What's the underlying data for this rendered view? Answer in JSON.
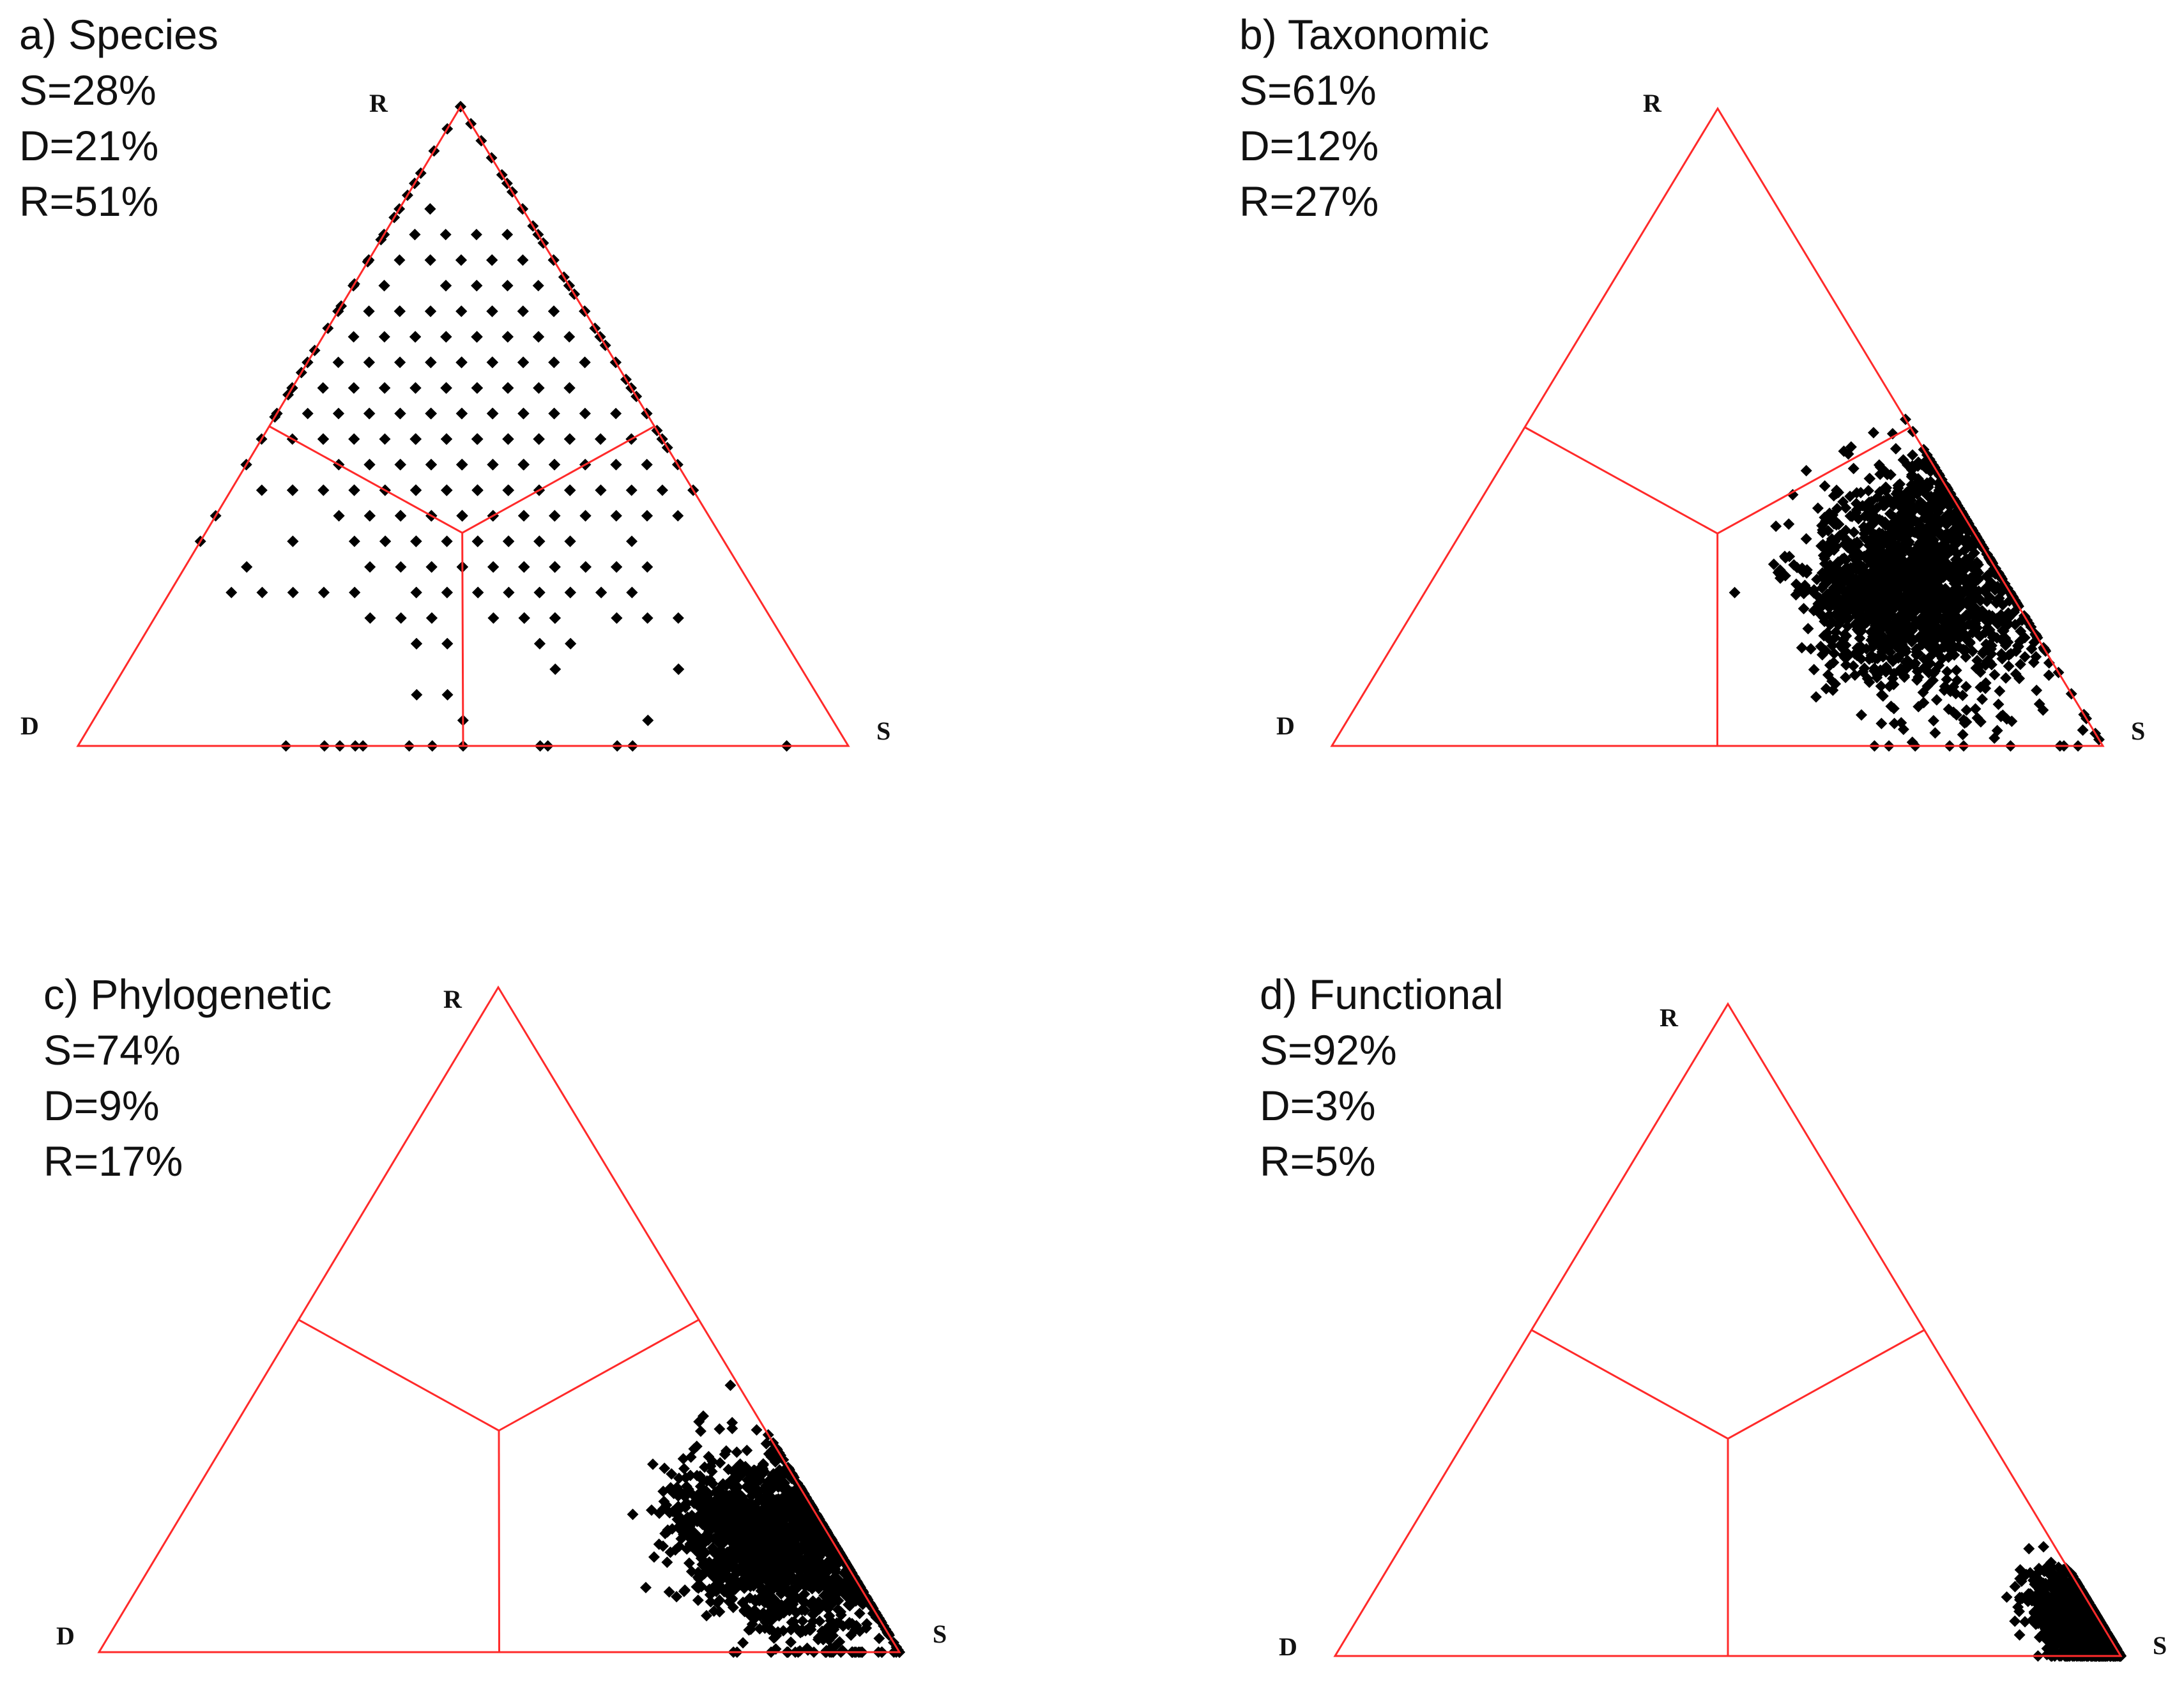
{
  "chart_data": [
    {
      "type": "scatter",
      "subtype": "ternary",
      "title": "a) Species",
      "stats": [
        {
          "label": "S",
          "value": 28,
          "text": "S=28%"
        },
        {
          "label": "D",
          "value": 21,
          "text": "D=21%"
        },
        {
          "label": "R",
          "value": 51,
          "text": "R=51%"
        }
      ],
      "vertices": {
        "top": "R",
        "left": "D",
        "right": "S"
      },
      "region_dividers": true,
      "point_color": "#000000",
      "line_color": "#ff2a2a",
      "clusters": [
        {
          "center": {
            "S": 0.31,
            "D": 0.27,
            "R": 0.42
          },
          "spread": 0.16,
          "count": 650,
          "snap": 0.04
        },
        {
          "center": {
            "S": 0.22,
            "D": 0.18,
            "R": 0.6
          },
          "spread": 0.12,
          "count": 180,
          "snap": 0.04
        },
        {
          "edge": "S-R",
          "from": {
            "S": 0.0,
            "D": 0.0,
            "R": 1.0
          },
          "to": {
            "S": 0.56,
            "D": 0.0,
            "R": 0.44
          },
          "count": 22
        },
        {
          "edge": "D-R",
          "from": {
            "S": 0.0,
            "D": 0.0,
            "R": 1.0
          },
          "to": {
            "S": 0.0,
            "D": 0.52,
            "R": 0.48
          },
          "count": 16
        },
        {
          "points": [
            {
              "S": 0.27,
              "D": 0.73,
              "R": 0.0
            },
            {
              "S": 0.32,
              "D": 0.68,
              "R": 0.0
            },
            {
              "S": 0.34,
              "D": 0.66,
              "R": 0.0
            },
            {
              "S": 0.37,
              "D": 0.63,
              "R": 0.0
            },
            {
              "S": 0.43,
              "D": 0.57,
              "R": 0.0
            },
            {
              "S": 0.46,
              "D": 0.54,
              "R": 0.0
            },
            {
              "S": 0.5,
              "D": 0.5,
              "R": 0.0
            },
            {
              "S": 0.61,
              "D": 0.39,
              "R": 0.0
            },
            {
              "S": 0.7,
              "D": 0.3,
              "R": 0.0
            },
            {
              "S": 0.72,
              "D": 0.28,
              "R": 0.0
            },
            {
              "S": 0.92,
              "D": 0.08,
              "R": 0.0
            }
          ]
        }
      ]
    },
    {
      "type": "scatter",
      "subtype": "ternary",
      "title": "b) Taxonomic",
      "stats": [
        {
          "label": "S",
          "value": 61,
          "text": "S=61%"
        },
        {
          "label": "D",
          "value": 12,
          "text": "D=12%"
        },
        {
          "label": "R",
          "value": 27,
          "text": "R=27%"
        }
      ],
      "vertices": {
        "top": "R",
        "left": "D",
        "right": "S"
      },
      "region_dividers": true,
      "point_color": "#000000",
      "line_color": "#ff2a2a",
      "clusters": [
        {
          "center": {
            "S": 0.64,
            "D": 0.11,
            "R": 0.25
          },
          "spread": 0.1,
          "count": 1400
        },
        {
          "center": {
            "S": 0.56,
            "D": 0.22,
            "R": 0.22
          },
          "spread": 0.07,
          "count": 220
        },
        {
          "center": {
            "S": 0.58,
            "D": 0.03,
            "R": 0.39
          },
          "spread": 0.05,
          "count": 120
        }
      ]
    },
    {
      "type": "scatter",
      "subtype": "ternary",
      "title": "c) Phylogenetic",
      "stats": [
        {
          "label": "S",
          "value": 74,
          "text": "S=74%"
        },
        {
          "label": "D",
          "value": 9,
          "text": "D=9%"
        },
        {
          "label": "R",
          "value": 17,
          "text": "R=17%"
        }
      ],
      "vertices": {
        "top": "R",
        "left": "D",
        "right": "S"
      },
      "region_dividers": true,
      "point_color": "#000000",
      "line_color": "#ff2a2a",
      "clusters": [
        {
          "center": {
            "S": 0.78,
            "D": 0.06,
            "R": 0.16
          },
          "spread": 0.08,
          "count": 1500
        },
        {
          "center": {
            "S": 0.7,
            "D": 0.13,
            "R": 0.17
          },
          "spread": 0.06,
          "count": 300
        }
      ]
    },
    {
      "type": "scatter",
      "subtype": "ternary",
      "title": "d) Functional",
      "stats": [
        {
          "label": "S",
          "value": 92,
          "text": "S=92%"
        },
        {
          "label": "D",
          "value": 3,
          "text": "D=3%"
        },
        {
          "label": "R",
          "value": 5,
          "text": "R=5%"
        }
      ],
      "vertices": {
        "top": "R",
        "left": "D",
        "right": "S"
      },
      "region_dividers": true,
      "point_color": "#000000",
      "line_color": "#ff2a2a",
      "clusters": [
        {
          "center": {
            "S": 0.93,
            "D": 0.02,
            "R": 0.05
          },
          "spread": 0.04,
          "count": 1200
        }
      ]
    }
  ]
}
